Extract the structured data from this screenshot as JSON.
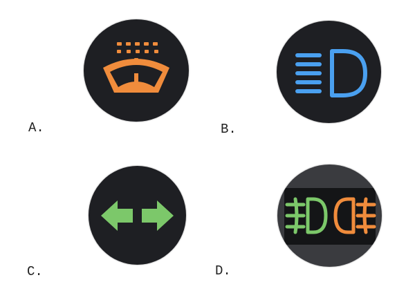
{
  "options": [
    {
      "label": "A.",
      "icon": "windshield-washer-icon"
    },
    {
      "label": "B.",
      "icon": "high-beam-headlight-icon"
    },
    {
      "label": "C.",
      "icon": "turn-signal-arrows-icon"
    },
    {
      "label": "D.",
      "icon": "front-rear-fog-lights-icon"
    }
  ],
  "colors": {
    "amber": "#f08c3c",
    "blue": "#4aa0f0",
    "green": "#7cc86a",
    "disc": "#1e1f23"
  }
}
